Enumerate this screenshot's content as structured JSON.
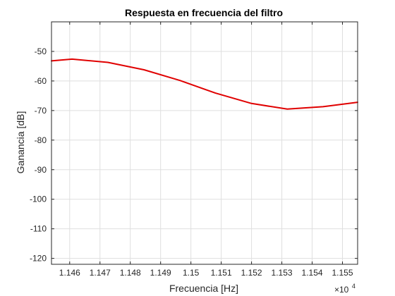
{
  "chart_data": {
    "type": "line",
    "title": "Respuesta en frecuencia del filtro",
    "xlabel": "Frecuencia [Hz]",
    "ylabel": "Ganancia [dB]",
    "x_exponent_base": "×10",
    "x_exponent_power": "4",
    "xlim": [
      1.1454,
      1.1555
    ],
    "ylim": [
      -122,
      -40
    ],
    "x_ticks": [
      1.146,
      1.147,
      1.148,
      1.149,
      1.15,
      1.151,
      1.152,
      1.153,
      1.154,
      1.155
    ],
    "x_tick_labels": [
      "1.146",
      "1.147",
      "1.148",
      "1.149",
      "1.15",
      "1.151",
      "1.152",
      "1.153",
      "1.154",
      "1.155"
    ],
    "y_ticks": [
      -120,
      -110,
      -100,
      -90,
      -80,
      -70,
      -60,
      -50
    ],
    "y_tick_labels": [
      "-120",
      "-110",
      "-100",
      "-90",
      "-80",
      "-70",
      "-60",
      "-50"
    ],
    "grid": true,
    "series": [
      {
        "color": "#e00000",
        "x": [
          1.1454,
          1.14608,
          1.14726,
          1.14845,
          1.14963,
          1.15081,
          1.152,
          1.15318,
          1.15436,
          1.1555
        ],
        "y": [
          -53.2,
          -52.6,
          -53.7,
          -56.2,
          -59.8,
          -64.1,
          -67.6,
          -69.5,
          -68.7,
          -67.2
        ]
      }
    ]
  }
}
